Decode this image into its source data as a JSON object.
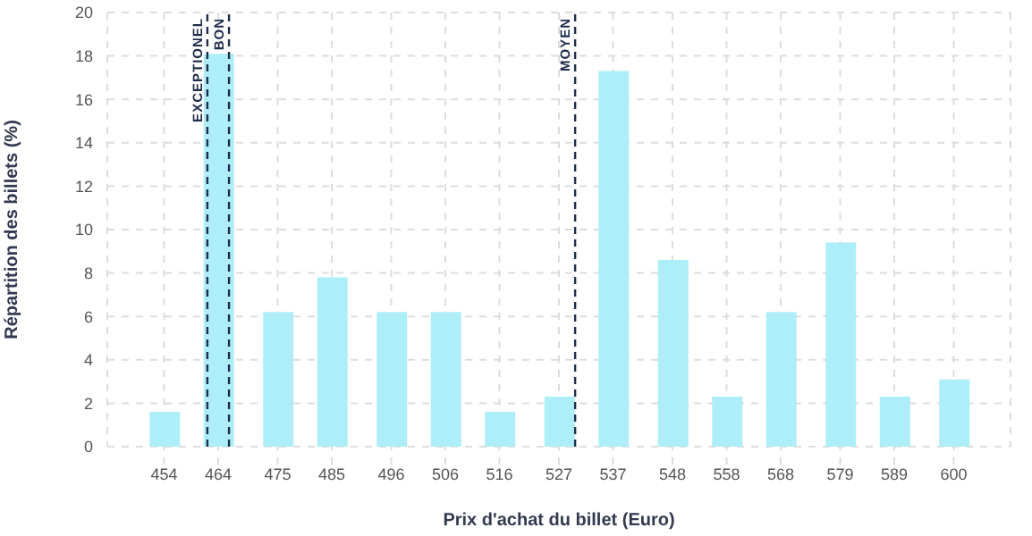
{
  "chart_data": {
    "type": "bar",
    "xlabel": "Prix d'achat du billet (Euro)",
    "ylabel": "Répartition des billets (%)",
    "x": [
      454,
      464,
      475,
      485,
      496,
      506,
      516,
      527,
      537,
      548,
      558,
      568,
      579,
      589,
      600
    ],
    "values": [
      1.6,
      18.1,
      6.2,
      7.8,
      6.2,
      6.2,
      1.6,
      2.3,
      17.3,
      8.6,
      2.3,
      6.2,
      9.4,
      2.3,
      3.1
    ],
    "color": "#aeeef8",
    "xlim": [
      443.5,
      610.5
    ],
    "xticks": [
      454,
      464,
      475,
      485,
      496,
      506,
      516,
      527,
      537,
      548,
      558,
      568,
      579,
      589,
      600
    ],
    "ylim": [
      0,
      20
    ],
    "yticks": [
      0,
      2,
      4,
      6,
      8,
      10,
      12,
      14,
      16,
      18,
      20
    ],
    "grid": true,
    "legend": false,
    "ref_lines": [
      {
        "axis": "x",
        "value": 462,
        "label": "EXCEPTIONEL",
        "color": "#1f2d4a",
        "line_style": "dashed"
      },
      {
        "axis": "x",
        "value": 466,
        "label": "BON",
        "color": "#1f2d4a",
        "line_style": "dashed"
      },
      {
        "axis": "x",
        "value": 530,
        "label": "MOYEN",
        "color": "#1f2d4a",
        "line_style": "dashed"
      }
    ]
  }
}
